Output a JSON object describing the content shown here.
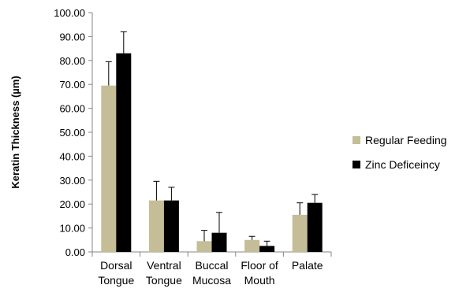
{
  "chart_data": {
    "type": "bar",
    "title": "",
    "xlabel": "",
    "ylabel": "Keratin Thickness (µm)",
    "ylim": [
      0,
      100
    ],
    "yticks": [
      "0.00",
      "10.00",
      "20.00",
      "30.00",
      "40.00",
      "50.00",
      "60.00",
      "70.00",
      "80.00",
      "90.00",
      "100.00"
    ],
    "categories": [
      [
        "Dorsal",
        "Tongue"
      ],
      [
        "Ventral",
        "Tongue"
      ],
      [
        "Buccal",
        "Mucosa"
      ],
      [
        "Floor of",
        "Mouth"
      ],
      [
        "Palate"
      ]
    ],
    "series": [
      {
        "name": "Regular Feeding",
        "color": "#c4bd97",
        "values": [
          69.5,
          21.5,
          4.5,
          5.0,
          15.5
        ],
        "errors": [
          10.0,
          8.0,
          4.5,
          1.5,
          5.0
        ]
      },
      {
        "name": "Zinc Deficeincy",
        "color": "#000000",
        "values": [
          83.0,
          21.5,
          8.0,
          2.5,
          20.5
        ],
        "errors": [
          9.0,
          5.5,
          8.5,
          2.0,
          3.5
        ]
      }
    ],
    "legend_position": "right",
    "grid": false,
    "error_bars": "upper"
  }
}
